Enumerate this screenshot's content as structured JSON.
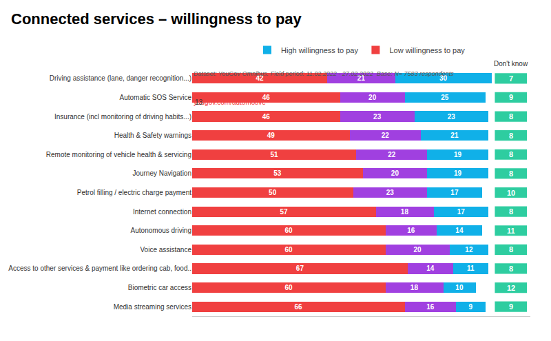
{
  "chart_data": {
    "type": "bar",
    "orientation": "horizontal",
    "stacked": true,
    "data_labels": true,
    "grid": false,
    "legend": "top",
    "tick_labels": "y",
    "title": "Connected services – willingness to pay",
    "annotations": [
      "yougov.com/automotive",
      "13",
      "Dataset: YouGov Omnibus. Field period: 11.02.2022 - 27.02.2022  Base: N= 7583 respondents"
    ],
    "categories": [
      "Driving assistance (lane, danger recognition...)",
      "Automatic SOS Service",
      "Insurance (incl monitoring of driving habits...)",
      "Health & Safety warnings",
      "Remote monitoring of vehicle health & servicing",
      "Journey Navigation",
      "Petrol filling / electric charge payment",
      "Internet connection",
      "Autonomous driving",
      "Voice assistance",
      "Access to other services & payment like ordering cab, food..",
      "Biometric car access",
      "Media streaming services"
    ],
    "series": [
      {
        "name": "Low willingness to pay",
        "color": "#f04040",
        "values": [
          42,
          46,
          46,
          49,
          51,
          53,
          50,
          57,
          60,
          60,
          67,
          60,
          66
        ]
      },
      {
        "color": "#a040e0",
        "values": [
          21,
          20,
          23,
          22,
          22,
          20,
          23,
          18,
          16,
          20,
          14,
          18,
          16
        ]
      },
      {
        "name": "High willingness to pay",
        "color": "#10b0e8",
        "values": [
          30,
          25,
          23,
          21,
          19,
          19,
          17,
          17,
          14,
          12,
          11,
          10,
          9
        ]
      },
      {
        "name": "Don't know",
        "type": "text",
        "color": "#2ecda0",
        "values": [
          7,
          9,
          8,
          8,
          8,
          8,
          10,
          8,
          11,
          8,
          8,
          12,
          9
        ]
      }
    ],
    "xlim": [
      0,
      105
    ]
  }
}
